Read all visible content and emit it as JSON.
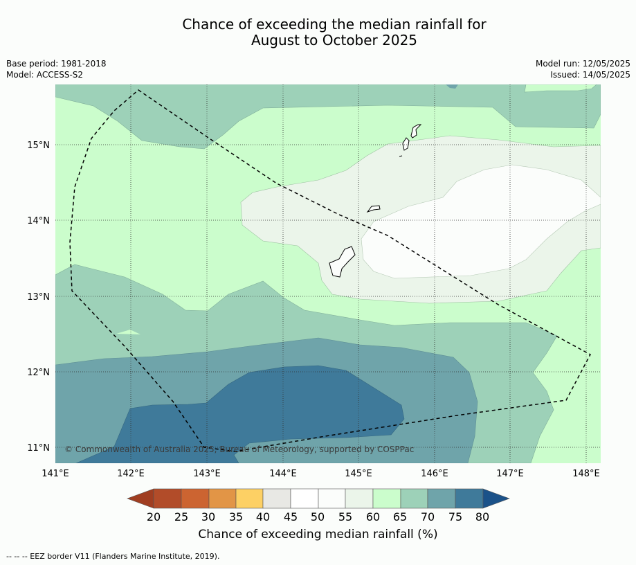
{
  "title_line1": "Chance of exceeding the median rainfall for",
  "title_line2": "August to October 2025",
  "meta": {
    "base_period": "Base period: 1981-2018",
    "model": "Model: ACCESS-S2",
    "model_run": "Model run: 12/05/2025",
    "issued": "Issued: 14/05/2025"
  },
  "map": {
    "lon_ticks": [
      "141°E",
      "142°E",
      "143°E",
      "144°E",
      "145°E",
      "146°E",
      "147°E",
      "148°E"
    ],
    "lat_ticks": [
      "15°N",
      "14°N",
      "13°N",
      "12°N",
      "11°N"
    ],
    "copyright": "© Commonwealth of Australia 2025, Bureau of Meteorology, supported by COSPPac",
    "colors": {
      "c80plus": "#1b5289",
      "c75_80": "#3f7a9a",
      "c70_75": "#6fa4aa",
      "c65_70": "#9dd1b8",
      "c60_65": "#cbfdcc",
      "c55_60": "#ebf5ea",
      "c50_55": "#fbfdfb",
      "c45_50": "#ffffff",
      "c40_45": "#e8e8e4",
      "c35_40": "#fdd064",
      "c30_35": "#e29546",
      "c25_30": "#cc6431",
      "c20_25": "#b24c29",
      "below20": "#a03e21"
    }
  },
  "colorbar": {
    "ticks": [
      "20",
      "25",
      "30",
      "35",
      "40",
      "45",
      "50",
      "55",
      "60",
      "65",
      "70",
      "75",
      "80"
    ],
    "label": "Chance of exceeding median rainfall (%)"
  },
  "footnote": "--  --  -- EEZ border V11 (Flanders Marine Institute, 2019)."
}
